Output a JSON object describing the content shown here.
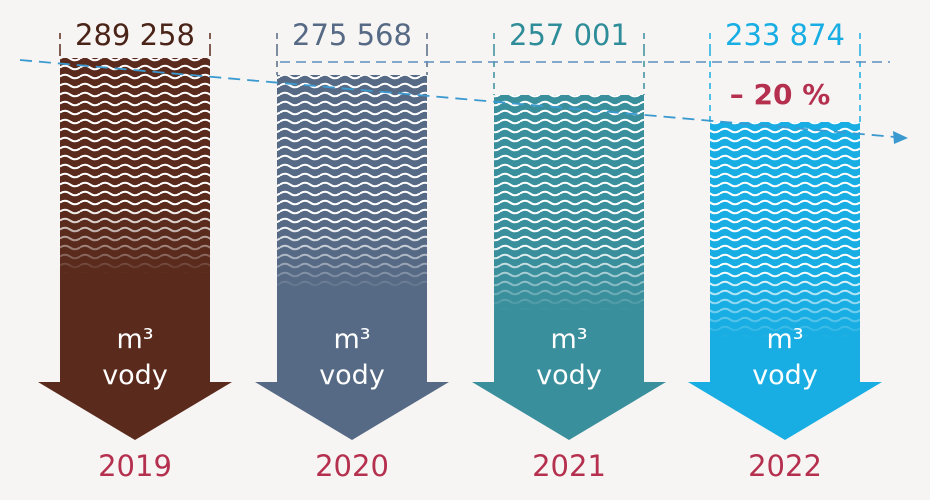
{
  "items": [
    {
      "value": "289 258",
      "unit": "m³",
      "label": "vody",
      "year": "2019"
    },
    {
      "value": "275 568",
      "unit": "m³",
      "label": "vody",
      "year": "2020"
    },
    {
      "value": "257 001",
      "unit": "m³",
      "label": "vody",
      "year": "2021"
    },
    {
      "value": "233 874",
      "unit": "m³",
      "label": "vody",
      "year": "2022"
    }
  ],
  "annotation": "– 20 %"
}
